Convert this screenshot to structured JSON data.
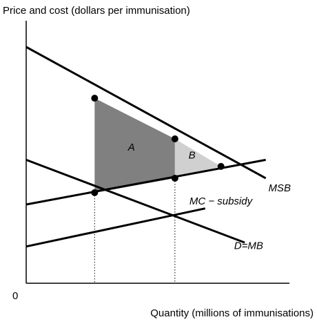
{
  "chart_data": {
    "type": "line",
    "title": "",
    "ylabel": "Price and cost (dollars per immunisation)",
    "xlabel": "Quantity (millions of immunisations)",
    "origin_label": "0",
    "xlim": [
      0,
      10
    ],
    "ylim": [
      0,
      10
    ],
    "series": [
      {
        "name": "MSB",
        "x": [
          0,
          9.1
        ],
        "y": [
          9.0,
          4.0
        ],
        "label_at": [
          9.2,
          3.5
        ],
        "color": "#000000"
      },
      {
        "name": "MC − subsidy",
        "x": [
          0,
          9.1
        ],
        "y": [
          3.0,
          4.7
        ],
        "label_at": [
          6.2,
          3.0
        ],
        "color": "#000000"
      },
      {
        "name": "D=MB",
        "x": [
          0,
          8.3
        ],
        "y": [
          4.7,
          1.55
        ],
        "label_at": [
          7.9,
          1.3
        ],
        "color": "#000000"
      },
      {
        "name": "",
        "x": [
          0,
          6.8
        ],
        "y": [
          1.4,
          2.85
        ],
        "color": "#000000"
      }
    ],
    "points": [
      {
        "x": 2.6,
        "y": 7.05
      },
      {
        "x": 5.65,
        "y": 5.5
      },
      {
        "x": 7.4,
        "y": 4.45
      },
      {
        "x": 2.6,
        "y": 3.45
      },
      {
        "x": 5.65,
        "y": 4.0
      }
    ],
    "dotted_lines": [
      {
        "x": 2.6,
        "y_top": 3.45
      },
      {
        "x": 5.65,
        "y_top": 4.0
      }
    ],
    "areas": [
      {
        "label": "A",
        "polygon": [
          [
            2.6,
            7.05
          ],
          [
            5.65,
            5.5
          ],
          [
            5.65,
            4.0
          ],
          [
            2.6,
            3.45
          ]
        ],
        "color": "#808080",
        "label_at": [
          4.0,
          5.05
        ]
      },
      {
        "label": "B",
        "polygon": [
          [
            5.65,
            5.5
          ],
          [
            7.4,
            4.45
          ],
          [
            5.65,
            4.0
          ]
        ],
        "color": "#d0d0d0",
        "label_at": [
          6.3,
          4.75
        ]
      }
    ]
  }
}
